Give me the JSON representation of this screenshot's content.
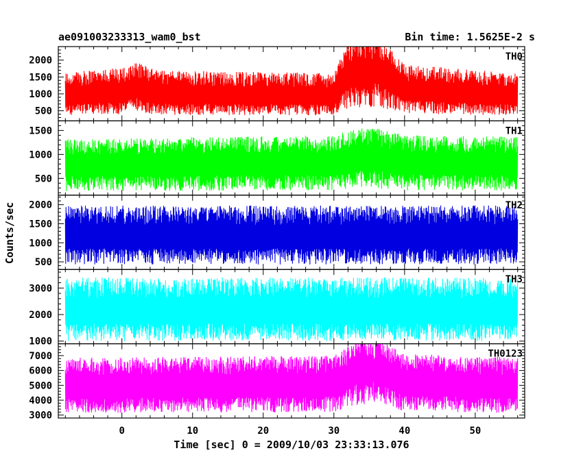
{
  "chart_data": {
    "type": "line",
    "title": "ae091003233313_wam0_bst",
    "subtitle": "Bin time: 1.5625E-2 s",
    "xlabel": "Time [sec] 0 = 2009/10/03 23:33:13.076",
    "ylabel": "Counts/sec",
    "xlim": [
      -9,
      57
    ],
    "xticks": [
      0,
      10,
      20,
      30,
      40,
      50
    ],
    "grid": false,
    "panels": [
      {
        "name": "TH0",
        "color": "#ff0000",
        "ylim": [
          200,
          2400
        ],
        "yticks": [
          500,
          1000,
          1500,
          2000
        ],
        "series": {
          "x_start": -8,
          "x_end": 56,
          "base": 380,
          "mean": 1000,
          "amplitude": 700,
          "segments": [
            {
              "x": [
                -8,
                0,
                2,
                5,
                30,
                32,
                36,
                40,
                56
              ],
              "mean": [
                960,
                1050,
                1180,
                1000,
                950,
                1500,
                1650,
                1100,
                950
              ]
            }
          ]
        }
      },
      {
        "name": "TH1",
        "color": "#00ff00",
        "ylim": [
          150,
          1700
        ],
        "yticks": [
          500,
          1000,
          1500
        ],
        "series": {
          "x_start": -8,
          "x_end": 56,
          "base": 250,
          "mean": 850,
          "amplitude": 550,
          "segments": [
            {
              "x": [
                -8,
                30,
                33,
                37,
                40,
                56
              ],
              "mean": [
                800,
                850,
                950,
                930,
                850,
                830
              ]
            }
          ]
        }
      },
      {
        "name": "TH2",
        "color": "#0000e0",
        "ylim": [
          300,
          2250
        ],
        "yticks": [
          500,
          1000,
          1500,
          2000
        ],
        "series": {
          "x_start": -8,
          "x_end": 56,
          "base": 430,
          "mean": 1200,
          "amplitude": 780,
          "segments": [
            {
              "x": [
                -8,
                56
              ],
              "mean": [
                1200,
                1200
              ]
            }
          ]
        }
      },
      {
        "name": "TH3",
        "color": "#00ffff",
        "ylim": [
          900,
          3700
        ],
        "yticks": [
          1000,
          2000,
          3000
        ],
        "series": {
          "x_start": -8,
          "x_end": 56,
          "base": 1000,
          "mean": 2200,
          "amplitude": 1200,
          "segments": [
            {
              "x": [
                -8,
                56
              ],
              "mean": [
                2200,
                2200
              ]
            }
          ]
        }
      },
      {
        "name": "TH0123",
        "color": "#ff00ff",
        "ylim": [
          2800,
          7800
        ],
        "yticks": [
          3000,
          4000,
          5000,
          6000,
          7000
        ],
        "series": {
          "x_start": -8,
          "x_end": 56,
          "base": 3200,
          "mean": 5100,
          "amplitude": 1900,
          "segments": [
            {
              "x": [
                -8,
                30,
                33,
                36,
                40,
                56
              ],
              "mean": [
                5000,
                5100,
                5800,
                6000,
                5200,
                5000
              ]
            }
          ]
        }
      }
    ]
  }
}
